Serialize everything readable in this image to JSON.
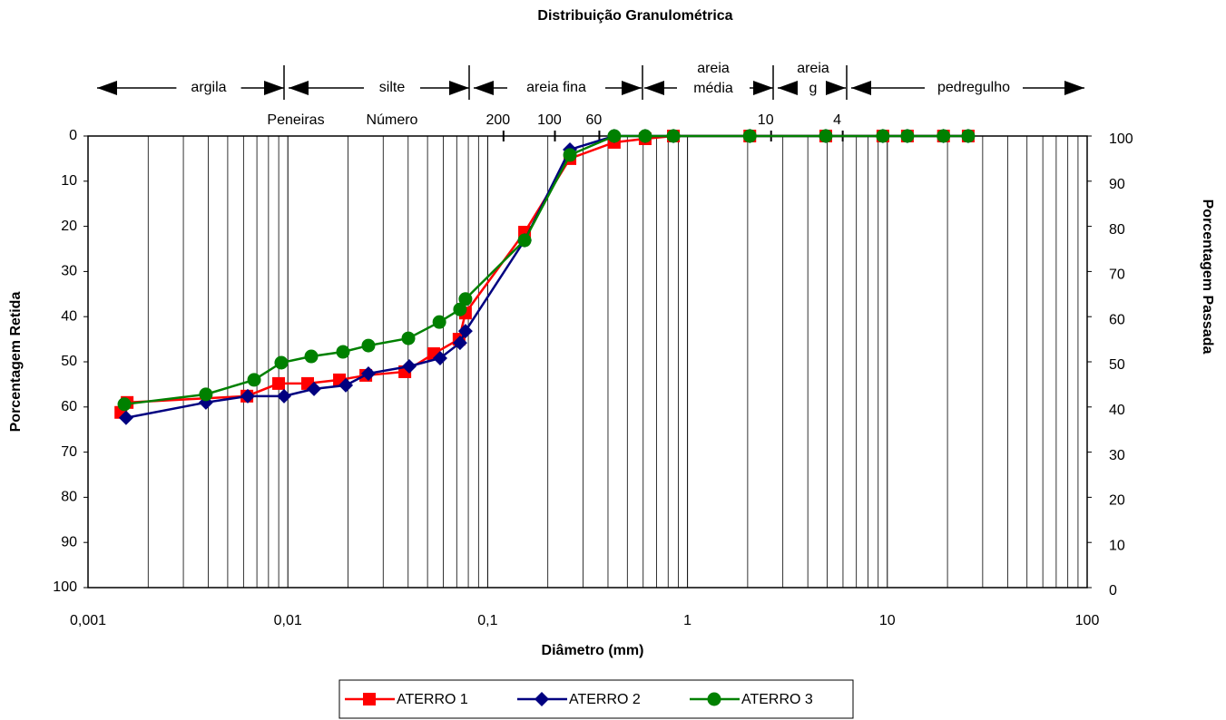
{
  "chart_data": {
    "type": "line",
    "title": "Distribuição Granulométrica",
    "x_label": "Diâmetro (mm)",
    "y_label": "Porcentagem Retida",
    "y2_label": "Porcentagem Passada",
    "log_x": true,
    "xlim": [
      0.001,
      100
    ],
    "xticks": [
      {
        "value": 0.001,
        "label": "0,001"
      },
      {
        "value": 0.01,
        "label": "0,01"
      },
      {
        "value": 0.1,
        "label": "0,1"
      },
      1,
      10,
      100
    ],
    "ylim": [
      100,
      0
    ],
    "yticks": [
      0,
      10,
      20,
      30,
      40,
      50,
      60,
      70,
      80,
      90,
      100
    ],
    "y2lim": [
      0,
      100
    ],
    "y2ticks": [
      0,
      10,
      20,
      30,
      40,
      50,
      60,
      70,
      80,
      90,
      100
    ],
    "grid": true,
    "legend": "bottom",
    "zones": [
      [
        "argila"
      ],
      [
        "silte"
      ],
      [
        "areia fina"
      ],
      [
        "areia",
        "média"
      ],
      [
        "areia",
        "g"
      ],
      [
        "pedregulho"
      ]
    ],
    "sieve_title": [
      "Peneiras",
      "Número"
    ],
    "sieves": [
      {
        "value": 0.12,
        "label": "200"
      },
      {
        "value": 0.217,
        "label": "100"
      },
      {
        "value": 0.362,
        "label": "60"
      },
      {
        "value": 2.62,
        "label": "10"
      },
      {
        "value": 5.98,
        "label": "4"
      }
    ],
    "series": [
      {
        "name": "ATERRO 1",
        "color": "#ff0000",
        "marker": "square",
        "axis": "y2",
        "x": [
          0.00146,
          0.00157,
          0.00624,
          0.00899,
          0.01256,
          0.01812,
          0.02455,
          0.0385,
          0.0537,
          0.0719,
          0.0774,
          0.153,
          0.258,
          0.43,
          0.614,
          0.85,
          2.05,
          4.92,
          9.5,
          12.6,
          19.1,
          25.4
        ],
        "values": [
          38.8,
          41.0,
          42.4,
          45.2,
          45.2,
          46.0,
          47.0,
          47.8,
          51.8,
          55.0,
          60.8,
          78.7,
          95.0,
          98.6,
          99.4,
          100,
          100,
          100,
          100,
          100,
          100,
          100
        ]
      },
      {
        "name": "ATERRO 2",
        "color": "#000080",
        "marker": "diamond",
        "axis": "y2",
        "x": [
          0.00155,
          0.00389,
          0.0063,
          0.00957,
          0.01352,
          0.0195,
          0.0253,
          0.0405,
          0.0578,
          0.0727,
          0.0774,
          0.153,
          0.258,
          0.43,
          0.614,
          0.85,
          2.05,
          4.92,
          9.5,
          12.6,
          19.1,
          25.4
        ],
        "values": [
          37.6,
          41.0,
          42.4,
          42.4,
          44.0,
          44.8,
          47.4,
          49.0,
          50.8,
          54.2,
          56.8,
          76.9,
          97.0,
          100,
          100,
          100,
          100,
          100,
          100,
          100,
          100,
          100
        ]
      },
      {
        "name": "ATERRO 3",
        "color": "#008000",
        "marker": "circle",
        "axis": "y2",
        "x": [
          0.00152,
          0.00389,
          0.00678,
          0.00927,
          0.0131,
          0.01888,
          0.0253,
          0.0401,
          0.0573,
          0.0727,
          0.0774,
          0.153,
          0.258,
          0.43,
          0.614,
          0.85,
          2.05,
          4.92,
          9.5,
          12.6,
          19.1,
          25.4
        ],
        "values": [
          40.6,
          42.8,
          46.0,
          49.8,
          51.2,
          52.2,
          53.6,
          55.2,
          58.8,
          61.6,
          63.9,
          76.9,
          95.8,
          100,
          100,
          100,
          100,
          100,
          100,
          100,
          100,
          100
        ]
      }
    ]
  }
}
